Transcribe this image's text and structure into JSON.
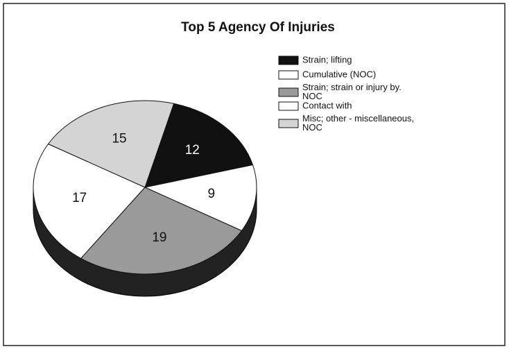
{
  "chart_data": {
    "type": "pie",
    "title": "Top 5 Agency Of Injuries",
    "categories": [
      "Strain; lifting",
      "Cumulative (NOC)",
      "Strain; strain or injury by. NOC",
      "Contact with",
      "Misc; other - miscellaneous, NOC"
    ],
    "values": [
      12,
      9,
      19,
      17,
      15
    ],
    "colors": [
      "#111111",
      "#ffffff",
      "#9a9a9a",
      "#ffffff",
      "#d4d4d4"
    ],
    "legend": "right"
  }
}
